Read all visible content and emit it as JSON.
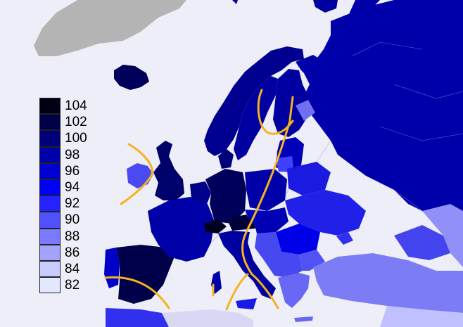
{
  "legend": {
    "items": [
      {
        "label": "104",
        "color": "#000014"
      },
      {
        "label": "102",
        "color": "#000048"
      },
      {
        "label": "100",
        "color": "#00007a"
      },
      {
        "label": "98",
        "color": "#0000a8"
      },
      {
        "label": "96",
        "color": "#0000d2"
      },
      {
        "label": "94",
        "color": "#0000f5"
      },
      {
        "label": "92",
        "color": "#2323ff"
      },
      {
        "label": "90",
        "color": "#5050ff"
      },
      {
        "label": "88",
        "color": "#7a7aff"
      },
      {
        "label": "86",
        "color": "#a3a3ff"
      },
      {
        "label": "84",
        "color": "#cbcbff"
      },
      {
        "label": "82",
        "color": "#e3e8ff"
      }
    ]
  },
  "colors": {
    "sea": "#eeeef8",
    "greenland": "#b4b4b4",
    "north_africa": "#eeeef8",
    "border": "#8a8af0",
    "boundary_line": "#f5b31d"
  }
}
